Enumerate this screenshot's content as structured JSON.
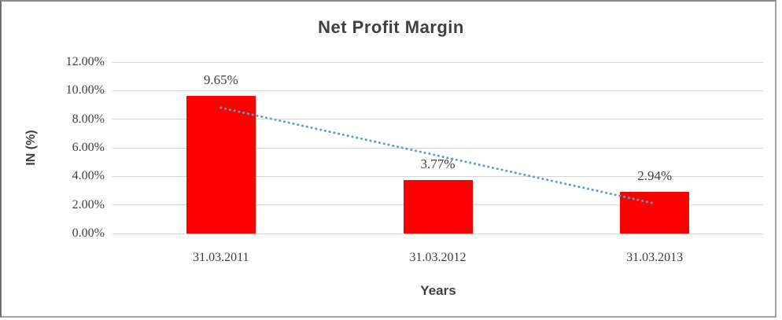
{
  "chart_data": {
    "type": "bar",
    "title": "Net Profit Margin",
    "categories": [
      "31.03.2011",
      "31.03.2012",
      "31.03.2013"
    ],
    "values": [
      9.65,
      3.77,
      2.94
    ],
    "data_labels": [
      "9.65%",
      "3.77%",
      "2.94%"
    ],
    "xlabel": "Years",
    "ylabel": "IN (%)",
    "ylim": [
      0,
      12
    ],
    "y_tick_step": 2,
    "y_tick_labels": [
      "0.00%",
      "2.00%",
      "4.00%",
      "6.00%",
      "8.00%",
      "10.00%",
      "12.00%"
    ],
    "grid": "horizontal",
    "legend": "none",
    "bar_color": "#FF0000",
    "gridline_color": "#D6D6D6",
    "text_color": "#3F3F3F",
    "title_color": "#404040",
    "trendline": {
      "type": "linear",
      "style": "dotted",
      "color": "#5B9BD5"
    }
  }
}
